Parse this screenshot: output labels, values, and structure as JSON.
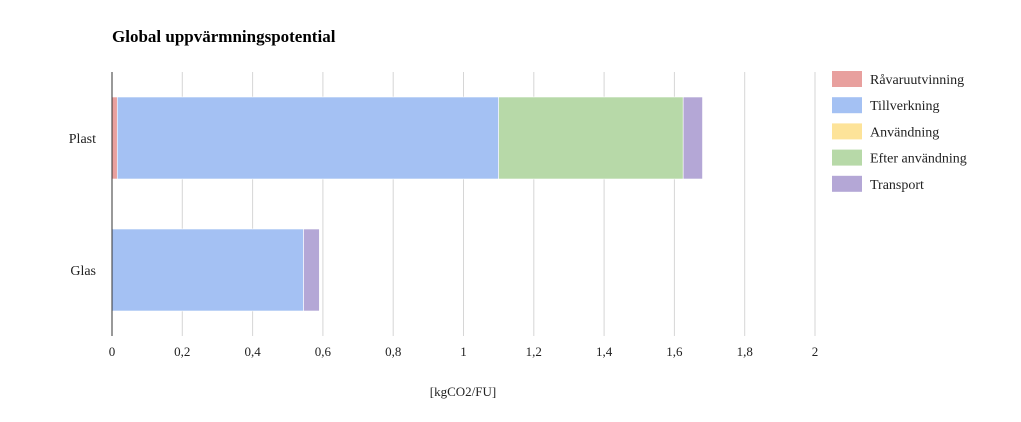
{
  "chart_data": {
    "type": "bar",
    "orientation": "horizontal",
    "stacked": true,
    "title": "Global uppvärmningspotential",
    "xlabel": "[kgCO2/FU]",
    "ylabel": "",
    "xlim": [
      0,
      2
    ],
    "ticks": [
      "0",
      "0,2",
      "0,4",
      "0,6",
      "0,8",
      "1",
      "1,2",
      "1,4",
      "1,6",
      "1,8",
      "2"
    ],
    "tick_values": [
      0,
      0.2,
      0.4,
      0.6,
      0.8,
      1,
      1.2,
      1.4,
      1.6,
      1.8,
      2
    ],
    "grid": true,
    "legend_position": "right",
    "categories": [
      "Plast",
      "Glas"
    ],
    "series": [
      {
        "name": "Råvaruutvinning",
        "color": "#e8a09e",
        "values": [
          0.015,
          0
        ]
      },
      {
        "name": "Tillverkning",
        "color": "#a4c1f3",
        "values": [
          1.085,
          0.545
        ]
      },
      {
        "name": "Användning",
        "color": "#fde399",
        "values": [
          0,
          0
        ]
      },
      {
        "name": "Efter användning",
        "color": "#b7d9a8",
        "values": [
          0.525,
          0
        ]
      },
      {
        "name": "Transport",
        "color": "#b4a7d6",
        "values": [
          0.055,
          0.045
        ]
      }
    ]
  }
}
